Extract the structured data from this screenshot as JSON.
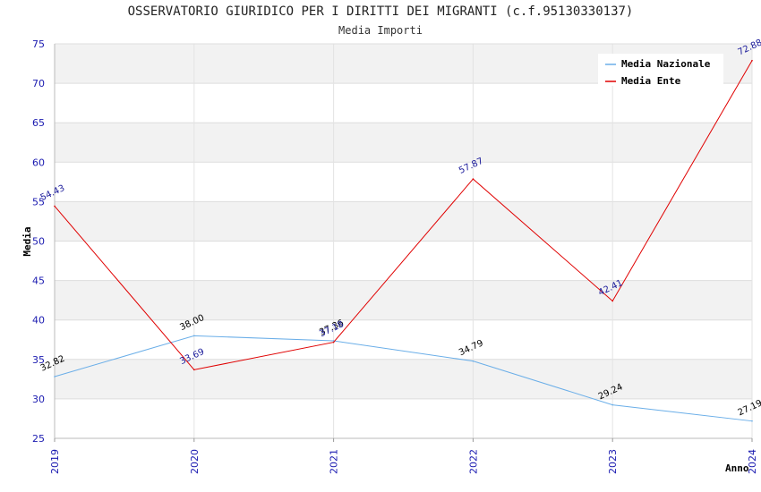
{
  "chart_data": {
    "type": "line",
    "title": "OSSERVATORIO GIURIDICO PER I DIRITTI DEI MIGRANTI (c.f.95130330137)",
    "subtitle": "Media Importi",
    "xlabel": "Anno",
    "ylabel": "Media",
    "categories": [
      "2019",
      "2020",
      "2021",
      "2022",
      "2023",
      "2024"
    ],
    "ylim": [
      25,
      75
    ],
    "yticks": [
      25,
      30,
      35,
      40,
      45,
      50,
      55,
      60,
      65,
      70,
      75
    ],
    "series": [
      {
        "name": "Media Nazionale",
        "color": "#6aaee8",
        "label_color": "#000000",
        "values": [
          32.82,
          38.0,
          37.36,
          34.79,
          29.24,
          27.19
        ],
        "labels": [
          "32.82",
          "38.00",
          "37.36",
          "34.79",
          "29.24",
          "27.19"
        ]
      },
      {
        "name": "Media Ente",
        "color": "#e00000",
        "label_color": "#1a1a9a",
        "values": [
          54.43,
          33.69,
          37.18,
          57.87,
          42.41,
          72.88
        ],
        "labels": [
          "54.43",
          "33.69",
          "37.18",
          "57.87",
          "42.41",
          "72.88"
        ]
      }
    ],
    "legend_position": "top-right",
    "grid": true
  }
}
